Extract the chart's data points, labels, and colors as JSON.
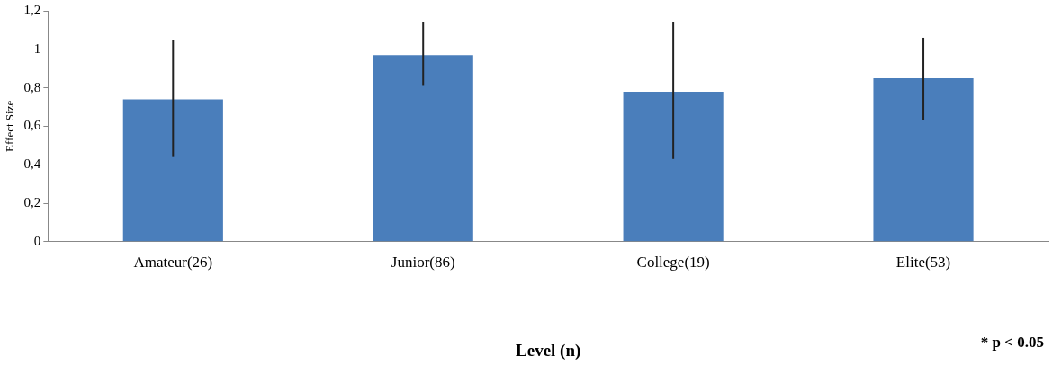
{
  "chart_data": {
    "type": "bar",
    "xlabel": "Level (n)",
    "ylabel": "Effect Size",
    "categories": [
      "Amateur(26)",
      "Junior(86)",
      "College(19)",
      "Elite(53)"
    ],
    "values": [
      0.74,
      0.97,
      0.78,
      0.85
    ],
    "color": "#4a7ebb",
    "errors": [
      [
        0.44,
        1.05
      ],
      [
        0.81,
        1.14
      ],
      [
        0.43,
        1.14
      ],
      [
        0.63,
        1.06
      ]
    ],
    "ylim": [
      0,
      1.2
    ],
    "yticks": [
      {
        "value": 0,
        "label": "0"
      },
      {
        "value": 0.2,
        "label": "0,2"
      },
      {
        "value": 0.4,
        "label": "0,4"
      },
      {
        "value": 0.6,
        "label": "0,6"
      },
      {
        "value": 0.8,
        "label": "0,8"
      },
      {
        "value": 1,
        "label": "1"
      },
      {
        "value": 1.2,
        "label": "1,2"
      }
    ],
    "grid": false,
    "legend": false,
    "annotations": [
      "* p < 0.05"
    ]
  }
}
